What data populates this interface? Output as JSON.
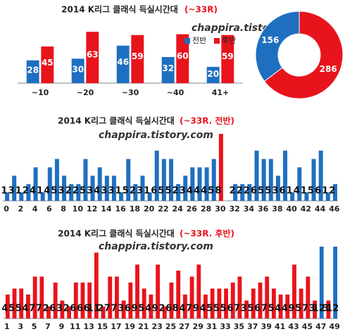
{
  "chart_data": [
    {
      "type": "bar",
      "title": "2014 K리그 클래식 득실시간대",
      "subtitle": "(~33R)",
      "source": "chappira.tistory.com",
      "categories": [
        "~10",
        "~20",
        "~30",
        "~40",
        "41+"
      ],
      "ylim": [
        0,
        70
      ],
      "label_style": "inside",
      "legend": "top-right",
      "series": [
        {
          "name": "전반",
          "color": "#1f6fc0",
          "values": [
            28,
            30,
            46,
            32,
            20
          ]
        },
        {
          "name": "후반",
          "color": "#e8141c",
          "values": [
            45,
            63,
            59,
            60,
            59
          ]
        }
      ]
    },
    {
      "type": "pie",
      "values": [
        156,
        286
      ],
      "colors": [
        "#1f6fc0",
        "#e8141c"
      ]
    },
    {
      "type": "bar",
      "title": "2014 K리그 클래식 득실시간대",
      "subtitle": "(~33R. 전반)",
      "source": "chappira.tistory.com",
      "categories": [
        "0",
        null,
        "2",
        null,
        "4",
        null,
        "6",
        null,
        "8",
        null,
        "10",
        null,
        "12",
        null,
        "14",
        null,
        "16",
        null,
        "18",
        null,
        "20",
        null,
        "22",
        null,
        "24",
        null,
        "26",
        null,
        "28",
        null,
        "30",
        null,
        "32",
        null,
        "34",
        null,
        "36",
        null,
        "38",
        null,
        "40",
        null,
        "42",
        null,
        "44",
        null,
        "46"
      ],
      "ylim": [
        0,
        8
      ],
      "label_style": "beside",
      "series": [
        {
          "color": "#1f6fc0",
          "values": [
            1,
            3,
            1,
            2,
            4,
            1,
            4,
            5,
            3,
            2,
            2,
            5,
            3,
            4,
            3,
            3,
            1,
            5,
            2,
            3,
            1,
            6,
            5,
            5,
            2,
            3,
            4,
            4,
            4,
            5,
            8,
            null,
            2,
            2,
            2,
            6,
            5,
            5,
            3,
            6,
            1,
            4,
            1,
            5,
            6,
            1,
            2
          ],
          "colors": [
            "#1f6fc0",
            "#1f6fc0",
            "#1f6fc0",
            "#1f6fc0",
            "#1f6fc0",
            "#1f6fc0",
            "#1f6fc0",
            "#1f6fc0",
            "#1f6fc0",
            "#1f6fc0",
            "#1f6fc0",
            "#1f6fc0",
            "#1f6fc0",
            "#1f6fc0",
            "#1f6fc0",
            "#1f6fc0",
            "#1f6fc0",
            "#1f6fc0",
            "#1f6fc0",
            "#1f6fc0",
            "#1f6fc0",
            "#1f6fc0",
            "#1f6fc0",
            "#1f6fc0",
            "#1f6fc0",
            "#1f6fc0",
            "#1f6fc0",
            "#1f6fc0",
            "#1f6fc0",
            "#1f6fc0",
            "#e8141c",
            "#1f6fc0",
            "#1f6fc0",
            "#1f6fc0",
            "#1f6fc0",
            "#1f6fc0",
            "#1f6fc0",
            "#1f6fc0",
            "#1f6fc0",
            "#1f6fc0",
            "#1f6fc0",
            "#1f6fc0",
            "#1f6fc0",
            "#1f6fc0",
            "#1f6fc0",
            "#1f6fc0",
            "#1f6fc0"
          ]
        }
      ]
    },
    {
      "type": "bar",
      "title": "2014 K리그 클래식 득실시간대",
      "subtitle": "(~33R. 후반)",
      "source": "chappira.tistory.com",
      "categories": [
        "1",
        null,
        "3",
        null,
        "5",
        null,
        "7",
        null,
        "9",
        null,
        "11",
        null,
        "13",
        null,
        "15",
        null,
        "17",
        null,
        "19",
        null,
        "21",
        null,
        "23",
        null,
        "25",
        null,
        "27",
        null,
        "29",
        null,
        "31",
        null,
        "33",
        null,
        "35",
        null,
        "37",
        null,
        "39",
        null,
        "41",
        null,
        "43",
        null,
        "45",
        null,
        "47",
        null,
        "49"
      ],
      "ylim": [
        0,
        12
      ],
      "label_style": "beside",
      "series": [
        {
          "color": "#e8141c",
          "values": [
            4,
            5,
            5,
            4,
            7,
            7,
            2,
            6,
            3,
            2,
            6,
            6,
            6,
            11,
            2,
            7,
            7,
            3,
            6,
            9,
            5,
            4,
            9,
            2,
            6,
            8,
            4,
            7,
            9,
            4,
            5,
            5,
            5,
            6,
            7,
            3,
            5,
            6,
            7,
            5,
            4,
            4,
            9,
            5,
            7,
            3,
            12,
            3,
            12
          ],
          "colors": [
            "#e8141c",
            "#e8141c",
            "#e8141c",
            "#e8141c",
            "#e8141c",
            "#e8141c",
            "#e8141c",
            "#e8141c",
            "#e8141c",
            "#e8141c",
            "#e8141c",
            "#e8141c",
            "#e8141c",
            "#e8141c",
            "#e8141c",
            "#e8141c",
            "#e8141c",
            "#e8141c",
            "#e8141c",
            "#e8141c",
            "#e8141c",
            "#e8141c",
            "#e8141c",
            "#e8141c",
            "#e8141c",
            "#e8141c",
            "#e8141c",
            "#e8141c",
            "#e8141c",
            "#e8141c",
            "#e8141c",
            "#e8141c",
            "#e8141c",
            "#e8141c",
            "#e8141c",
            "#e8141c",
            "#e8141c",
            "#e8141c",
            "#e8141c",
            "#e8141c",
            "#e8141c",
            "#e8141c",
            "#e8141c",
            "#e8141c",
            "#e8141c",
            "#e8141c",
            "#1f6fc0",
            "#e8141c",
            "#1f6fc0"
          ]
        }
      ]
    }
  ]
}
